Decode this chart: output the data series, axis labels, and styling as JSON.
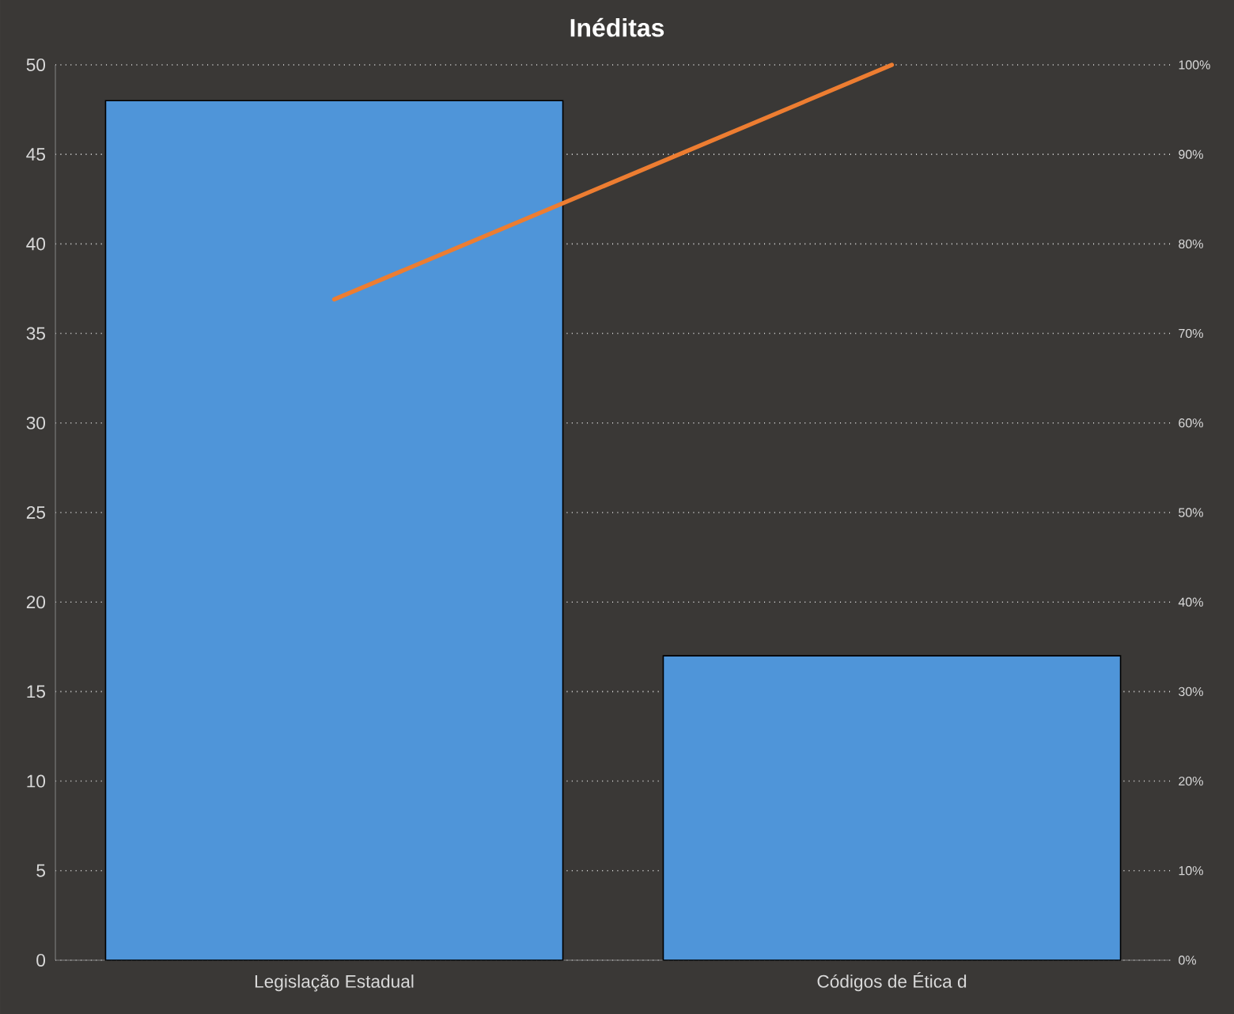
{
  "chart_data": {
    "type": "bar",
    "title": "Inéditas",
    "categories": [
      "Legislação Estadual",
      "Códigos de Ética d"
    ],
    "series": [
      {
        "color": "#4f95d9",
        "values": [
          48,
          17
        ]
      },
      {
        "type": "line",
        "axis": "y2",
        "color": "#ed7d31",
        "values": [
          73.8,
          100
        ]
      }
    ],
    "ylim": [
      0,
      50
    ],
    "yticks": [
      0,
      5,
      10,
      15,
      20,
      25,
      30,
      35,
      40,
      45,
      50
    ],
    "y2lim": [
      0,
      100
    ],
    "y2ticks": [
      {
        "value": 0,
        "label": "0%"
      },
      {
        "value": 10,
        "label": "10%"
      },
      {
        "value": 20,
        "label": "20%"
      },
      {
        "value": 30,
        "label": "30%"
      },
      {
        "value": 40,
        "label": "40%"
      },
      {
        "value": 50,
        "label": "50%"
      },
      {
        "value": 60,
        "label": "60%"
      },
      {
        "value": 70,
        "label": "70%"
      },
      {
        "value": 80,
        "label": "80%"
      },
      {
        "value": 90,
        "label": "90%"
      },
      {
        "value": 100,
        "label": "100%"
      }
    ],
    "grid": "y",
    "legend": false
  }
}
